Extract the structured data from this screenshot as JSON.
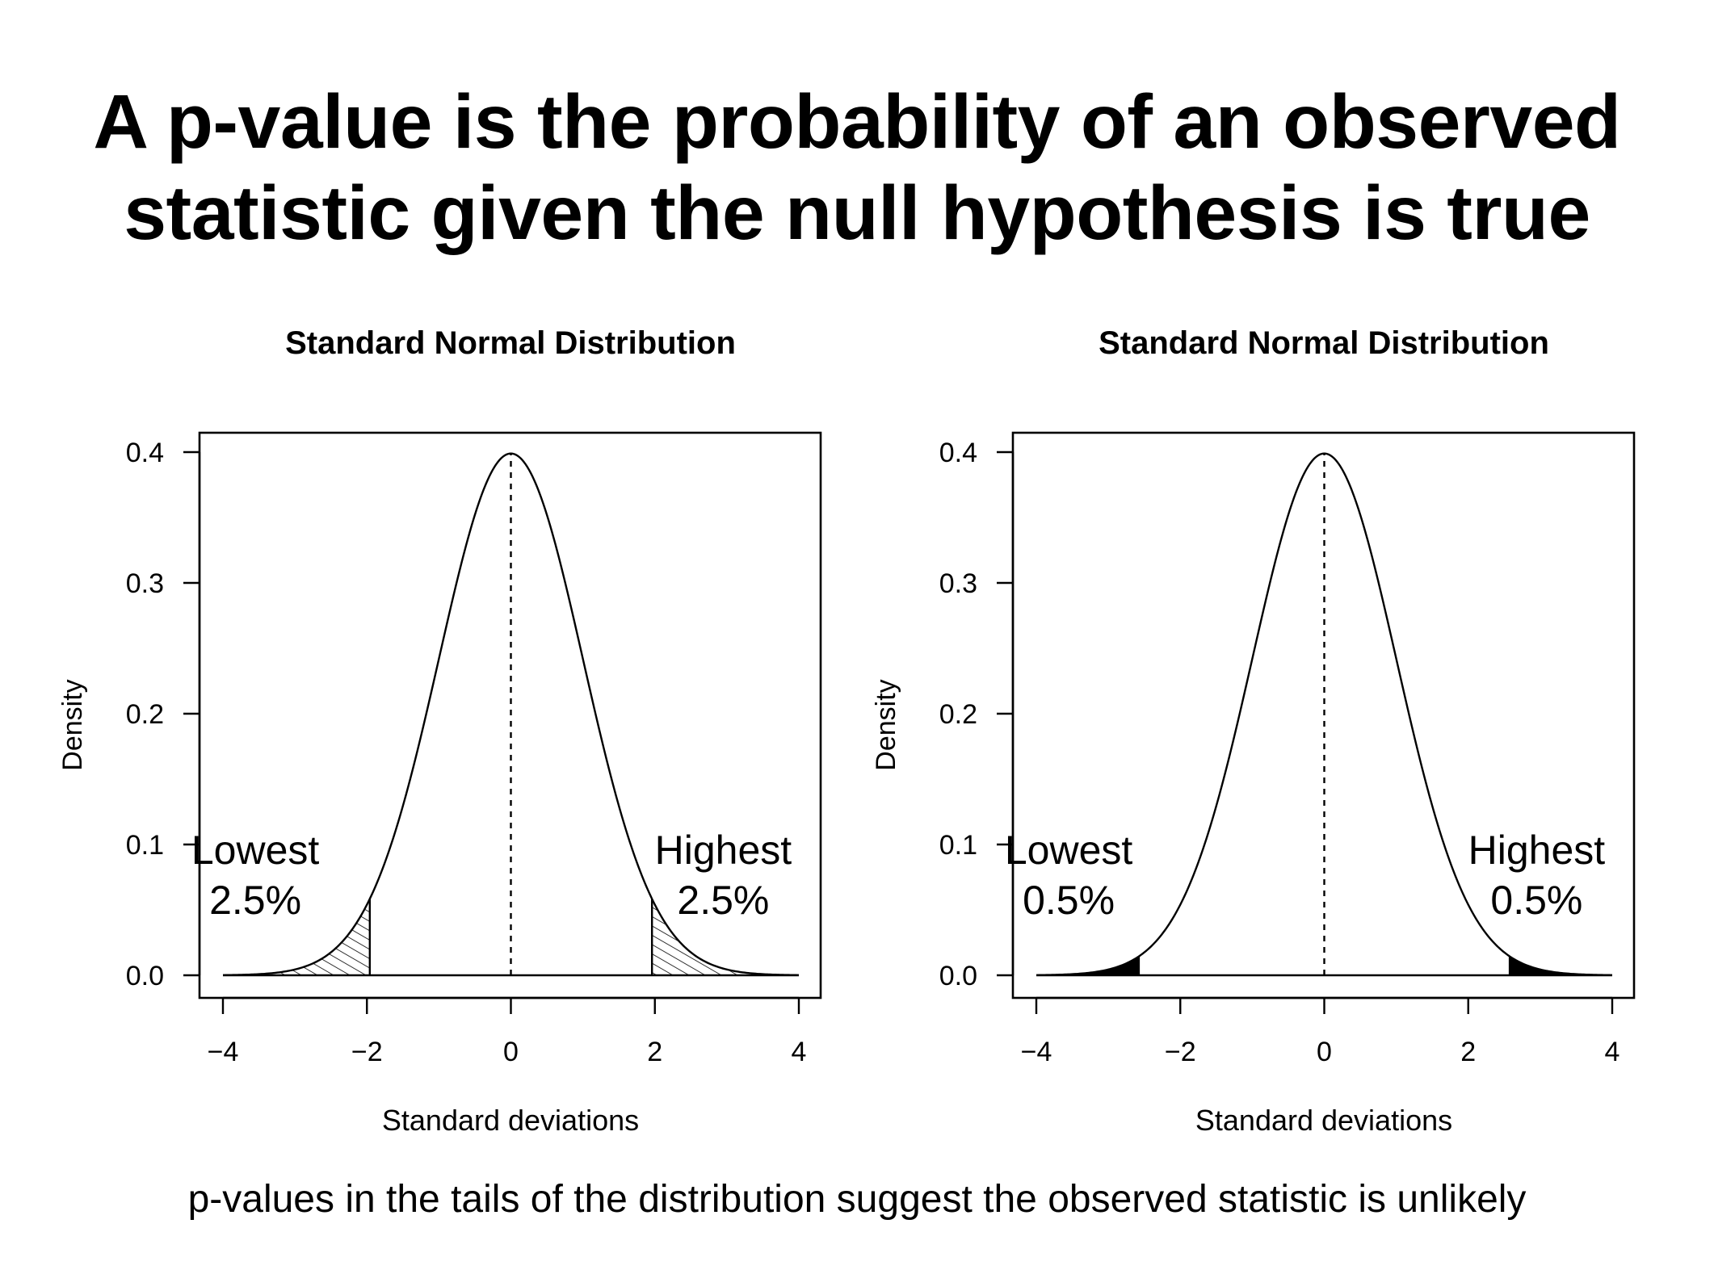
{
  "slide": {
    "title_line1": "A p-value is the probability of an observed",
    "title_line2": "statistic given the null hypothesis is true",
    "caption": "p-values in the tails of the distribution suggest the observed statistic is unlikely"
  },
  "chart_data": [
    {
      "type": "area",
      "title": "Standard Normal Distribution",
      "xlabel": "Standard deviations",
      "ylabel": "Density",
      "xlim": [
        -4,
        4
      ],
      "ylim": [
        0,
        0.4
      ],
      "xticks": [
        -4,
        -2,
        0,
        2,
        4
      ],
      "xtick_labels": [
        "−4",
        "−2",
        "0",
        "2",
        "4"
      ],
      "yticks": [
        0,
        0.1,
        0.2,
        0.3,
        0.4
      ],
      "ytick_labels": [
        "0.0",
        "0.1",
        "0.2",
        "0.3",
        "0.4"
      ],
      "curve": "normal density, mean 0, sd 1",
      "mean_line": 0,
      "shaded_regions": [
        {
          "from": -4,
          "to": -1.96,
          "fill": "hatched"
        },
        {
          "from": 1.96,
          "to": 4,
          "fill": "hatched"
        }
      ],
      "annotations": [
        {
          "lines": [
            "Lowest",
            "2.5%"
          ],
          "side": "left"
        },
        {
          "lines": [
            "Highest",
            "2.5%"
          ],
          "side": "right"
        }
      ],
      "grid": false
    },
    {
      "type": "area",
      "title": "Standard Normal Distribution",
      "xlabel": "Standard deviations",
      "ylabel": "Density",
      "xlim": [
        -4,
        4
      ],
      "ylim": [
        0,
        0.4
      ],
      "xticks": [
        -4,
        -2,
        0,
        2,
        4
      ],
      "xtick_labels": [
        "−4",
        "−2",
        "0",
        "2",
        "4"
      ],
      "yticks": [
        0,
        0.1,
        0.2,
        0.3,
        0.4
      ],
      "ytick_labels": [
        "0.0",
        "0.1",
        "0.2",
        "0.3",
        "0.4"
      ],
      "curve": "normal density, mean 0, sd 1",
      "mean_line": 0,
      "shaded_regions": [
        {
          "from": -4,
          "to": -2.576,
          "fill": "solid"
        },
        {
          "from": 2.576,
          "to": 4,
          "fill": "solid"
        }
      ],
      "annotations": [
        {
          "lines": [
            "Lowest",
            "0.5%"
          ],
          "side": "left"
        },
        {
          "lines": [
            "Highest",
            "0.5%"
          ],
          "side": "right"
        }
      ],
      "grid": false
    }
  ]
}
